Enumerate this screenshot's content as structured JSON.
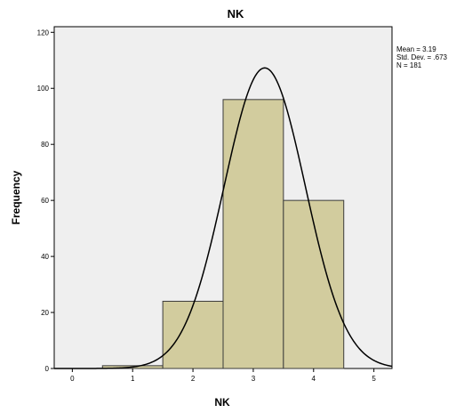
{
  "chart_data": {
    "type": "bar",
    "title": "NK",
    "xlabel": "NK",
    "ylabel": "Frequency",
    "x_ticks": [
      "0",
      "1",
      "2",
      "3",
      "4",
      "5"
    ],
    "y_ticks": [
      "0",
      "20",
      "40",
      "60",
      "80",
      "100",
      "120"
    ],
    "xlim": [
      -0.3,
      5.3
    ],
    "ylim": [
      0,
      122
    ],
    "bins": [
      {
        "from": 0.5,
        "to": 1.5,
        "value": 1
      },
      {
        "from": 1.5,
        "to": 2.5,
        "value": 24
      },
      {
        "from": 2.5,
        "to": 3.5,
        "value": 96
      },
      {
        "from": 3.5,
        "to": 4.5,
        "value": 60
      }
    ],
    "normal_curve": {
      "mean": 3.19,
      "std_dev": 0.673,
      "n": 181,
      "bin_width": 1
    },
    "stats": {
      "mean": "Mean = 3.19",
      "std_dev": "Std. Dev. = .673",
      "n": "N = 181"
    },
    "grid": false,
    "legend": "right",
    "colors": {
      "plot_bg": "#efefef",
      "bar_fill": "#d2cc9e",
      "bar_stroke": "#3b3b3b",
      "curve": "#000000",
      "axis": "#000000"
    }
  }
}
